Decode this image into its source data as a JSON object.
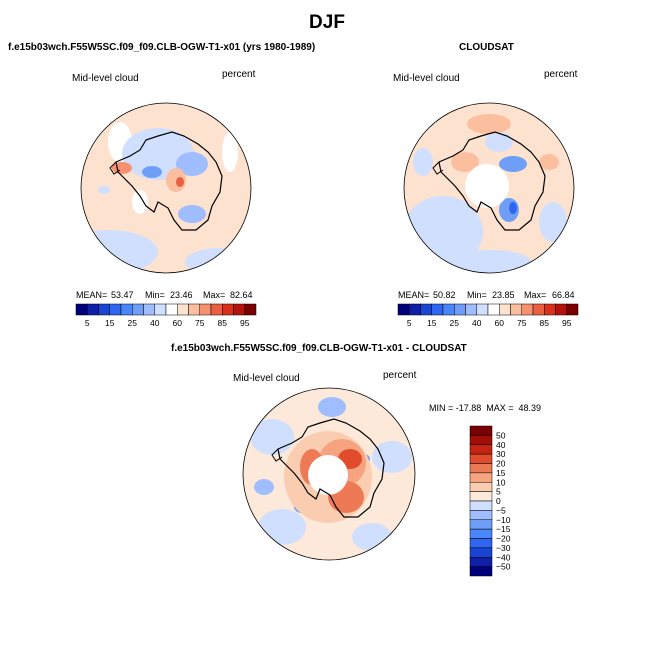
{
  "page": {
    "title": "DJF"
  },
  "panels": [
    {
      "title": "f.e15b03wch.F55W5SC.f09_f09.CLB-OGW-T1-x01 (yrs 1980-1989)",
      "variable": "Mid-level cloud",
      "units": "percent",
      "mean_label": "MEAN=",
      "mean": "53.47",
      "min_label": "Min=",
      "min": "23.46",
      "max_label": "Max=",
      "max": "82.64"
    },
    {
      "title": "CLOUDSAT",
      "variable": "Mid-level cloud",
      "units": "percent",
      "mean_label": "MEAN=",
      "mean": "50.82",
      "min_label": "Min=",
      "min": "23.85",
      "max_label": "Max=",
      "max": "66.84"
    },
    {
      "title": "f.e15b03wch.F55W5SC.f09_f09.CLB-OGW-T1-x01 - CLOUDSAT",
      "variable": "Mid-level cloud",
      "units": "percent",
      "minmax_text": "MIN = -17.88  MAX =  48.39"
    }
  ],
  "chart_data": [
    {
      "type": "heatmap",
      "projection": "polar-stereographic-south",
      "title": "f.e15b03wch.F55W5SC.f09_f09.CLB-OGW-T1-x01 (yrs 1980-1989)",
      "variable": "Mid-level cloud",
      "units": "percent",
      "mean": 53.47,
      "min": 23.46,
      "max": 82.64,
      "colorbar": {
        "orientation": "horizontal",
        "levels": [
          5,
          10,
          15,
          20,
          25,
          30,
          40,
          50,
          60,
          70,
          75,
          80,
          85,
          90,
          95
        ],
        "tick_labels": [
          "5",
          "15",
          "25",
          "40",
          "60",
          "75",
          "85",
          "95"
        ],
        "colors": [
          "#00007a",
          "#0f1fa8",
          "#1a44d4",
          "#2e66f2",
          "#4a86fa",
          "#6e9ef8",
          "#a0beff",
          "#d0dffe",
          "#ffffff",
          "#fde2cf",
          "#fbbf9f",
          "#f69170",
          "#ea5f3f",
          "#d9301a",
          "#b4120c",
          "#7a0000"
        ]
      }
    },
    {
      "type": "heatmap",
      "projection": "polar-stereographic-south",
      "title": "CLOUDSAT",
      "variable": "Mid-level cloud",
      "units": "percent",
      "mean": 50.82,
      "min": 23.85,
      "max": 66.84,
      "colorbar": {
        "orientation": "horizontal",
        "levels": [
          5,
          10,
          15,
          20,
          25,
          30,
          40,
          50,
          60,
          70,
          75,
          80,
          85,
          90,
          95
        ],
        "tick_labels": [
          "5",
          "15",
          "25",
          "40",
          "60",
          "75",
          "85",
          "95"
        ],
        "colors": [
          "#00007a",
          "#0f1fa8",
          "#1a44d4",
          "#2e66f2",
          "#4a86fa",
          "#6e9ef8",
          "#a0beff",
          "#d0dffe",
          "#ffffff",
          "#fde2cf",
          "#fbbf9f",
          "#f69170",
          "#ea5f3f",
          "#d9301a",
          "#b4120c",
          "#7a0000"
        ]
      }
    },
    {
      "type": "heatmap",
      "projection": "polar-stereographic-south",
      "title": "f.e15b03wch.F55W5SC.f09_f09.CLB-OGW-T1-x01 - CLOUDSAT",
      "variable": "Mid-level cloud",
      "units": "percent",
      "min": -17.88,
      "max": 48.39,
      "colorbar": {
        "orientation": "vertical",
        "levels": [
          -50,
          -40,
          -30,
          -20,
          -15,
          -10,
          -5,
          0,
          5,
          10,
          15,
          20,
          30,
          40,
          50
        ],
        "tick_labels": [
          "50",
          "40",
          "30",
          "20",
          "15",
          "10",
          "5",
          "0",
          "−5",
          "−10",
          "−15",
          "−20",
          "−30",
          "−40",
          "−50"
        ],
        "colors": [
          "#00007a",
          "#0f1fa8",
          "#1a44d4",
          "#2e66f2",
          "#4a86fa",
          "#6e9ef8",
          "#a0beff",
          "#d0dffe",
          "#fde9da",
          "#fbcdb0",
          "#f6a480",
          "#ee7a55",
          "#e14d2c",
          "#c42411",
          "#a00e06",
          "#7a0000"
        ]
      }
    }
  ]
}
